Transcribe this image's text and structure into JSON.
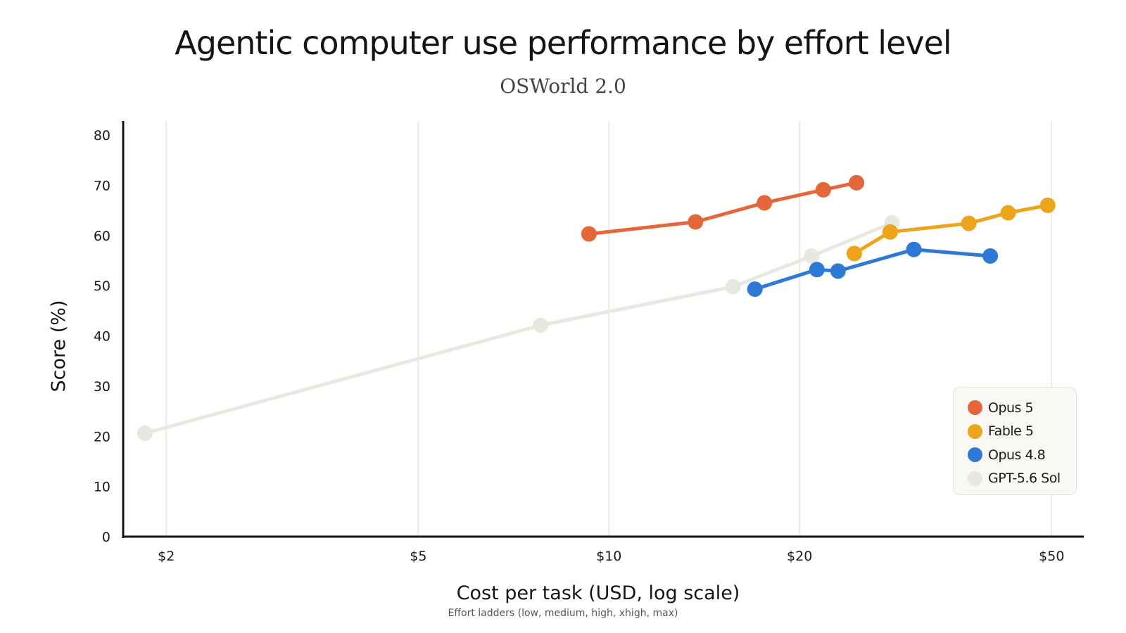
{
  "chart_data": {
    "type": "line",
    "title": "Agentic computer use performance by effort level",
    "subtitle": "OSWorld 2.0",
    "xlabel": "Cost per task (USD, log scale)",
    "ylabel": "Score (%)",
    "note": "Effort ladders (low, medium, high, xhigh, max)",
    "x_scale": "log",
    "xlim": [
      1.71,
      54.5
    ],
    "ylim": [
      0,
      80
    ],
    "x_ticks": [
      {
        "value": 2,
        "label": "$2"
      },
      {
        "value": 5,
        "label": "$5"
      },
      {
        "value": 10,
        "label": "$10"
      },
      {
        "value": 20,
        "label": "$20"
      },
      {
        "value": 50,
        "label": "$50"
      }
    ],
    "y_ticks": [
      {
        "value": 0,
        "label": "0"
      },
      {
        "value": 10,
        "label": "10"
      },
      {
        "value": 20,
        "label": "20"
      },
      {
        "value": 30,
        "label": "30"
      },
      {
        "value": 40,
        "label": "40"
      },
      {
        "value": 50,
        "label": "50"
      },
      {
        "value": 60,
        "label": "60"
      },
      {
        "value": 70,
        "label": "70"
      },
      {
        "value": 80,
        "label": "80"
      }
    ],
    "grid": {
      "vertical": true,
      "horizontal": false
    },
    "legend_position": "bottom-right",
    "series": [
      {
        "name": "GPT-5.6 Sol",
        "color": "#e9e8e0",
        "points": [
          {
            "x": 1.85,
            "y": 20.6
          },
          {
            "x": 7.8,
            "y": 42.1
          },
          {
            "x": 15.7,
            "y": 49.8
          },
          {
            "x": 20.9,
            "y": 55.9
          },
          {
            "x": 28.0,
            "y": 62.5
          }
        ]
      },
      {
        "name": "Opus 5",
        "color": "#e5663a",
        "points": [
          {
            "x": 9.3,
            "y": 60.3
          },
          {
            "x": 13.7,
            "y": 62.7
          },
          {
            "x": 17.6,
            "y": 66.5
          },
          {
            "x": 21.8,
            "y": 69.1
          },
          {
            "x": 24.6,
            "y": 70.5
          }
        ]
      },
      {
        "name": "Fable 5",
        "color": "#eca51a",
        "points": [
          {
            "x": 24.4,
            "y": 56.4
          },
          {
            "x": 27.8,
            "y": 60.7
          },
          {
            "x": 37.0,
            "y": 62.4
          },
          {
            "x": 42.7,
            "y": 64.5
          },
          {
            "x": 49.3,
            "y": 66.0
          }
        ]
      },
      {
        "name": "Opus 4.8",
        "color": "#2e78d6",
        "points": [
          {
            "x": 17.0,
            "y": 49.3
          },
          {
            "x": 21.3,
            "y": 53.2
          },
          {
            "x": 23.0,
            "y": 52.9
          },
          {
            "x": 30.3,
            "y": 57.2
          },
          {
            "x": 40.0,
            "y": 55.9
          }
        ]
      }
    ],
    "legend": [
      {
        "label": "Opus 5",
        "color": "#e5663a"
      },
      {
        "label": "Fable 5",
        "color": "#eca51a"
      },
      {
        "label": "Opus 4.8",
        "color": "#2e78d6"
      },
      {
        "label": "GPT-5.6 Sol",
        "color": "#e9e8e0"
      }
    ]
  }
}
